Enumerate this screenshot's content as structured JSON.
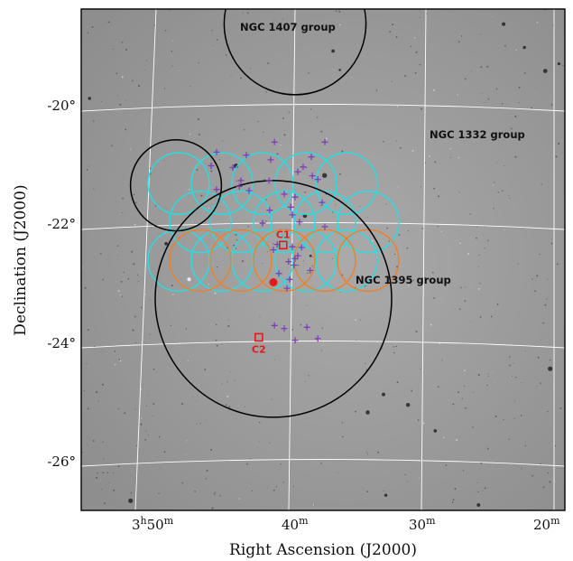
{
  "colors": {
    "sky_bg": "#9d9d9d",
    "grid": "#ffffff",
    "pointing_a": "#22e0e6",
    "pointing_b": "#f07f24",
    "group_outline": "#000000",
    "members": "#7e3fb5",
    "markers": "#e31a1c"
  },
  "axes": {
    "xlabel": "Right Ascension (J2000)",
    "ylabel": "Declination (J2000)",
    "x_ticks": [
      {
        "value": 57.5,
        "label_main": "3",
        "label_sup1": "h",
        "label_mid": "50",
        "label_sup2": "m"
      },
      {
        "value": 60,
        "label_main": "",
        "label_sup1": "",
        "label_mid": "40",
        "label_sup2": "m"
      },
      {
        "value": 62.5,
        "label_main": "",
        "label_sup1": "",
        "label_mid": "30",
        "label_sup2": "m"
      },
      {
        "value": 65,
        "label_main": "",
        "label_sup1": "",
        "label_mid": "20",
        "label_sup2": "m"
      }
    ],
    "y_ticks": [
      {
        "value": -20,
        "label": "-20°"
      },
      {
        "value": -22,
        "label": "-22°"
      },
      {
        "value": -24,
        "label": "-24°"
      },
      {
        "value": -26,
        "label": "-26°"
      }
    ]
  },
  "groups": [
    {
      "name": "NGC 1407 group",
      "ra_deg": 60.0,
      "dec_deg": -18.6,
      "radius_deg": 1.2
    },
    {
      "name": "NGC 1332 group",
      "ra_deg": 57.8,
      "dec_deg": -21.33,
      "radius_deg": 0.77
    },
    {
      "name": "NGC 1395 group",
      "ra_deg": 59.6,
      "dec_deg": -23.25,
      "radius_deg": 2.0
    }
  ],
  "group_center": {
    "ra_deg": 59.6,
    "dec_deg": -22.97
  },
  "markers": [
    {
      "label": "C1",
      "ra_deg": 59.78,
      "dec_deg": -22.34
    },
    {
      "label": "C2",
      "ra_deg": 59.33,
      "dec_deg": -23.9
    }
  ],
  "members": [
    {
      "ra_deg": 60.15,
      "dec_deg": -21.02
    },
    {
      "ra_deg": 60.05,
      "dec_deg": -21.1
    },
    {
      "ra_deg": 60.55,
      "dec_deg": -20.6
    },
    {
      "ra_deg": 59.62,
      "dec_deg": -20.6
    },
    {
      "ra_deg": 60.3,
      "dec_deg": -20.85
    },
    {
      "ra_deg": 59.55,
      "dec_deg": -20.9
    },
    {
      "ra_deg": 59.1,
      "dec_deg": -20.82
    },
    {
      "ra_deg": 58.55,
      "dec_deg": -20.77
    },
    {
      "ra_deg": 58.85,
      "dec_deg": -21.03
    },
    {
      "ra_deg": 58.45,
      "dec_deg": -21.0
    },
    {
      "ra_deg": 60.32,
      "dec_deg": -21.17
    },
    {
      "ra_deg": 60.42,
      "dec_deg": -21.23
    },
    {
      "ra_deg": 59.52,
      "dec_deg": -21.25
    },
    {
      "ra_deg": 59.0,
      "dec_deg": -21.25
    },
    {
      "ra_deg": 58.97,
      "dec_deg": -21.35
    },
    {
      "ra_deg": 58.55,
      "dec_deg": -21.4
    },
    {
      "ra_deg": 59.15,
      "dec_deg": -21.42
    },
    {
      "ra_deg": 59.8,
      "dec_deg": -21.48
    },
    {
      "ra_deg": 60.0,
      "dec_deg": -21.53
    },
    {
      "ra_deg": 60.5,
      "dec_deg": -21.62
    },
    {
      "ra_deg": 59.92,
      "dec_deg": -21.7
    },
    {
      "ra_deg": 59.53,
      "dec_deg": -21.75
    },
    {
      "ra_deg": 59.95,
      "dec_deg": -21.83
    },
    {
      "ra_deg": 60.08,
      "dec_deg": -21.95
    },
    {
      "ra_deg": 59.4,
      "dec_deg": -21.97
    },
    {
      "ra_deg": 60.55,
      "dec_deg": -22.03
    },
    {
      "ra_deg": 59.67,
      "dec_deg": -22.33
    },
    {
      "ra_deg": 59.95,
      "dec_deg": -22.37
    },
    {
      "ra_deg": 60.12,
      "dec_deg": -22.38
    },
    {
      "ra_deg": 59.6,
      "dec_deg": -22.42
    },
    {
      "ra_deg": 60.05,
      "dec_deg": -22.52
    },
    {
      "ra_deg": 60.0,
      "dec_deg": -22.57
    },
    {
      "ra_deg": 59.88,
      "dec_deg": -22.62
    },
    {
      "ra_deg": 59.98,
      "dec_deg": -22.68
    },
    {
      "ra_deg": 60.28,
      "dec_deg": -22.77
    },
    {
      "ra_deg": 59.7,
      "dec_deg": -22.82
    },
    {
      "ra_deg": 59.9,
      "dec_deg": -22.92
    },
    {
      "ra_deg": 59.85,
      "dec_deg": -23.07
    },
    {
      "ra_deg": 60.22,
      "dec_deg": -23.73
    },
    {
      "ra_deg": 59.8,
      "dec_deg": -23.75
    },
    {
      "ra_deg": 59.62,
      "dec_deg": -23.7
    },
    {
      "ra_deg": 60.0,
      "dec_deg": -23.95
    },
    {
      "ra_deg": 60.42,
      "dec_deg": -23.92
    }
  ],
  "field_a": [
    {
      "ra_deg": 57.85,
      "dec_deg": -22.6
    },
    {
      "ra_deg": 58.65,
      "dec_deg": -22.6
    },
    {
      "ra_deg": 59.4,
      "dec_deg": -22.6
    },
    {
      "ra_deg": 60.2,
      "dec_deg": -22.6
    },
    {
      "ra_deg": 60.95,
      "dec_deg": -22.6
    },
    {
      "ra_deg": 58.25,
      "dec_deg": -21.95
    },
    {
      "ra_deg": 59.0,
      "dec_deg": -21.95
    },
    {
      "ra_deg": 59.8,
      "dec_deg": -21.95
    },
    {
      "ra_deg": 60.55,
      "dec_deg": -21.95
    },
    {
      "ra_deg": 61.35,
      "dec_deg": -21.95
    },
    {
      "ra_deg": 57.85,
      "dec_deg": -21.3
    },
    {
      "ra_deg": 58.65,
      "dec_deg": -21.3
    },
    {
      "ra_deg": 59.4,
      "dec_deg": -21.3
    },
    {
      "ra_deg": 60.2,
      "dec_deg": -21.3
    },
    {
      "ra_deg": 60.95,
      "dec_deg": -21.3
    }
  ],
  "field_b": [
    {
      "ra_deg": 58.25,
      "dec_deg": -22.6
    },
    {
      "ra_deg": 59.0,
      "dec_deg": -22.6
    },
    {
      "ra_deg": 59.8,
      "dec_deg": -22.6
    },
    {
      "ra_deg": 60.55,
      "dec_deg": -22.6
    },
    {
      "ra_deg": 61.35,
      "dec_deg": -22.6
    }
  ]
}
